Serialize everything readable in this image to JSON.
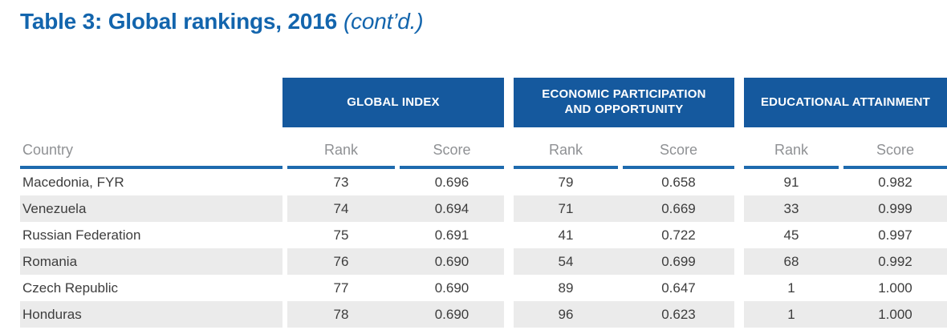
{
  "title": {
    "main": "Table 3: Global rankings, 2016",
    "suffix": "(cont’d.)"
  },
  "colors": {
    "title_blue": "#1365ad",
    "header_blue": "#15599e",
    "rule_blue": "#1e6aae",
    "zebra_gray": "#ebebeb",
    "text_dark": "#3d3d3d",
    "muted_gray": "#8f9194"
  },
  "table": {
    "groups": [
      {
        "line1": "GLOBAL INDEX",
        "line2": ""
      },
      {
        "line1": "ECONOMIC PARTICIPATION",
        "line2": "AND OPPORTUNITY"
      },
      {
        "line1": "EDUCATIONAL ATTAINMENT",
        "line2": ""
      }
    ],
    "subheaders": {
      "country": "Country",
      "rank": "Rank",
      "score": "Score"
    },
    "rows": [
      {
        "country": "Macedonia, FYR",
        "gi_rank": "73",
        "gi_score": "0.696",
        "ep_rank": "79",
        "ep_score": "0.658",
        "ea_rank": "91",
        "ea_score": "0.982"
      },
      {
        "country": "Venezuela",
        "gi_rank": "74",
        "gi_score": "0.694",
        "ep_rank": "71",
        "ep_score": "0.669",
        "ea_rank": "33",
        "ea_score": "0.999"
      },
      {
        "country": "Russian Federation",
        "gi_rank": "75",
        "gi_score": "0.691",
        "ep_rank": "41",
        "ep_score": "0.722",
        "ea_rank": "45",
        "ea_score": "0.997"
      },
      {
        "country": "Romania",
        "gi_rank": "76",
        "gi_score": "0.690",
        "ep_rank": "54",
        "ep_score": "0.699",
        "ea_rank": "68",
        "ea_score": "0.992"
      },
      {
        "country": "Czech Republic",
        "gi_rank": "77",
        "gi_score": "0.690",
        "ep_rank": "89",
        "ep_score": "0.647",
        "ea_rank": "1",
        "ea_score": "1.000"
      },
      {
        "country": "Honduras",
        "gi_rank": "78",
        "gi_score": "0.690",
        "ep_rank": "96",
        "ep_score": "0.623",
        "ea_rank": "1",
        "ea_score": "1.000"
      }
    ]
  }
}
